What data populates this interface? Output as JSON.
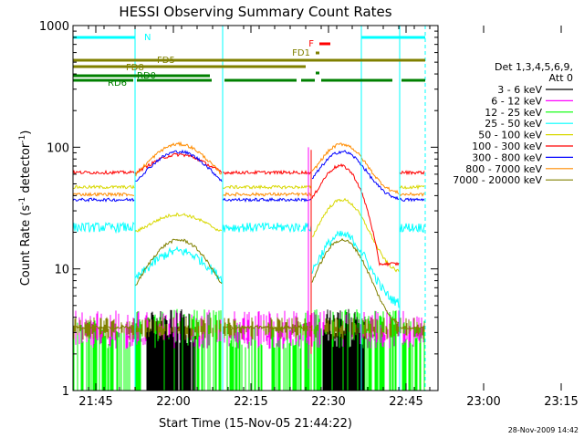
{
  "chart_data": {
    "type": "line",
    "title": "HESSI Observing Summary Count Rates",
    "xlabel": "Start Time (15-Nov-05 21:44:22)",
    "ylabel_main": "Count Rate (s",
    "ylabel_sup1": "-1",
    "ylabel_mid": " detector",
    "ylabel_sup2": "-1",
    "ylabel_end": ")",
    "yscale": "log",
    "ylim": [
      1,
      1000
    ],
    "x_ticks": [
      "21:45",
      "22:00",
      "22:15",
      "22:30",
      "22:45",
      "23:00",
      "23:15"
    ],
    "y_ticks": [
      {
        "value": 1,
        "label": "1"
      },
      {
        "value": 10,
        "label": "10"
      },
      {
        "value": 100,
        "label": "100"
      },
      {
        "value": 1000,
        "label": "1000"
      }
    ],
    "legend_header": [
      "Det 1,3,4,5,6,9,",
      "Att 0"
    ],
    "series": [
      {
        "name": "3 - 6 keV",
        "color": "#000000"
      },
      {
        "name": "6 - 12 keV",
        "color": "#ff00ff"
      },
      {
        "name": "12 - 25 keV",
        "color": "#00ff00"
      },
      {
        "name": "25 - 50 keV",
        "color": "#00ffff"
      },
      {
        "name": "50 - 100 keV",
        "color": "#d8d800"
      },
      {
        "name": "100 - 300 keV",
        "color": "#ff0000"
      },
      {
        "name": "300 - 800 keV",
        "color": "#0000ff"
      },
      {
        "name": "800 - 7000 keV",
        "color": "#ff8c00"
      },
      {
        "name": "7000 - 20000 keV",
        "color": "#808000"
      }
    ],
    "flag_labels": {
      "N": "N",
      "F": "F",
      "FD1": "FD1",
      "FD5": "FD5",
      "FD8": "FD8",
      "RD0": "RD0",
      "RD6": "RD6"
    }
  },
  "footer": {
    "timestamp": "28-Nov-2009 14:42"
  }
}
